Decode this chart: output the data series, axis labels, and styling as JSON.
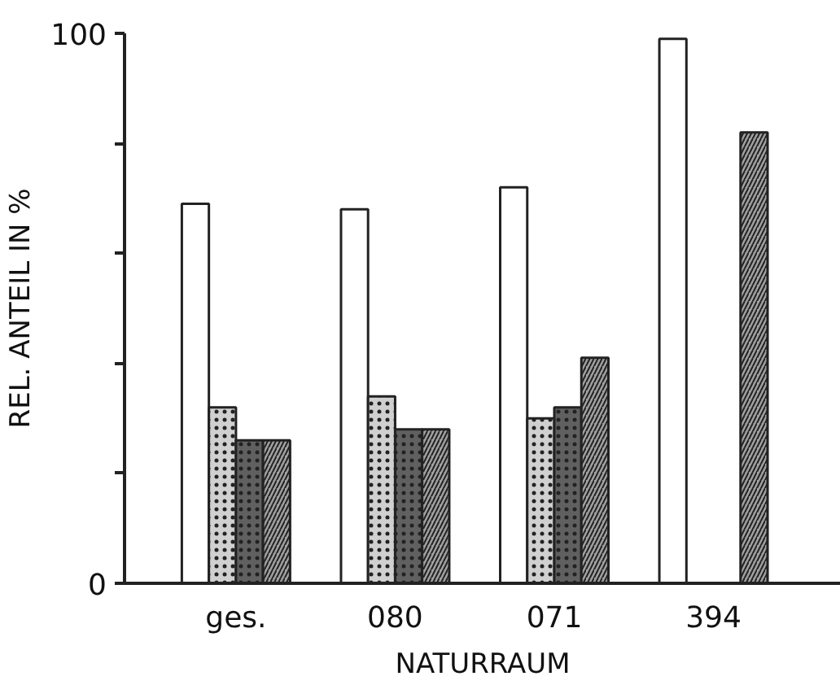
{
  "chart_data": {
    "type": "bar",
    "xlabel": "NATURRAUM",
    "ylabel": "REL. ANTEIL IN %",
    "categories": [
      "ges.",
      "080",
      "071",
      "394"
    ],
    "series": [
      {
        "color": "#ffffff",
        "values": [
          69,
          68,
          72,
          99
        ]
      },
      {
        "color": "#d0d0d0",
        "values": [
          32,
          34,
          30,
          null
        ]
      },
      {
        "color": "#606060",
        "values": [
          26,
          28,
          32,
          null
        ]
      },
      {
        "color": "#a0a0a0",
        "values": [
          26,
          28,
          41,
          82
        ]
      }
    ],
    "ylim": [
      0,
      100
    ],
    "yticks": [
      0,
      {
        "value": 20,
        "label": null
      },
      {
        "value": 40,
        "label": null
      },
      {
        "value": 60,
        "label": null
      },
      {
        "value": 80,
        "label": null
      },
      100
    ],
    "grid": false
  }
}
